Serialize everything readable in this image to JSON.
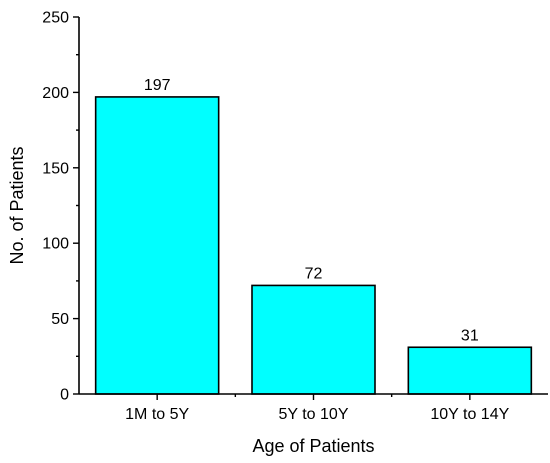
{
  "chart_data": {
    "type": "bar",
    "categories": [
      "1M to 5Y",
      "5Y to 10Y",
      "10Y to 14Y"
    ],
    "values": [
      197,
      72,
      31
    ],
    "data_labels": [
      "197",
      "72",
      "31"
    ],
    "title": "",
    "xlabel": "Age of Patients",
    "ylabel": "No. of Patients",
    "ylim": [
      0,
      250
    ],
    "yticks": [
      0,
      50,
      100,
      150,
      200,
      250
    ],
    "ytick_labels": [
      "0",
      "50",
      "100",
      "150",
      "200",
      "250"
    ],
    "grid": false,
    "legend": "none",
    "bar_color": "#00ffff",
    "edge_color": "#000000"
  }
}
